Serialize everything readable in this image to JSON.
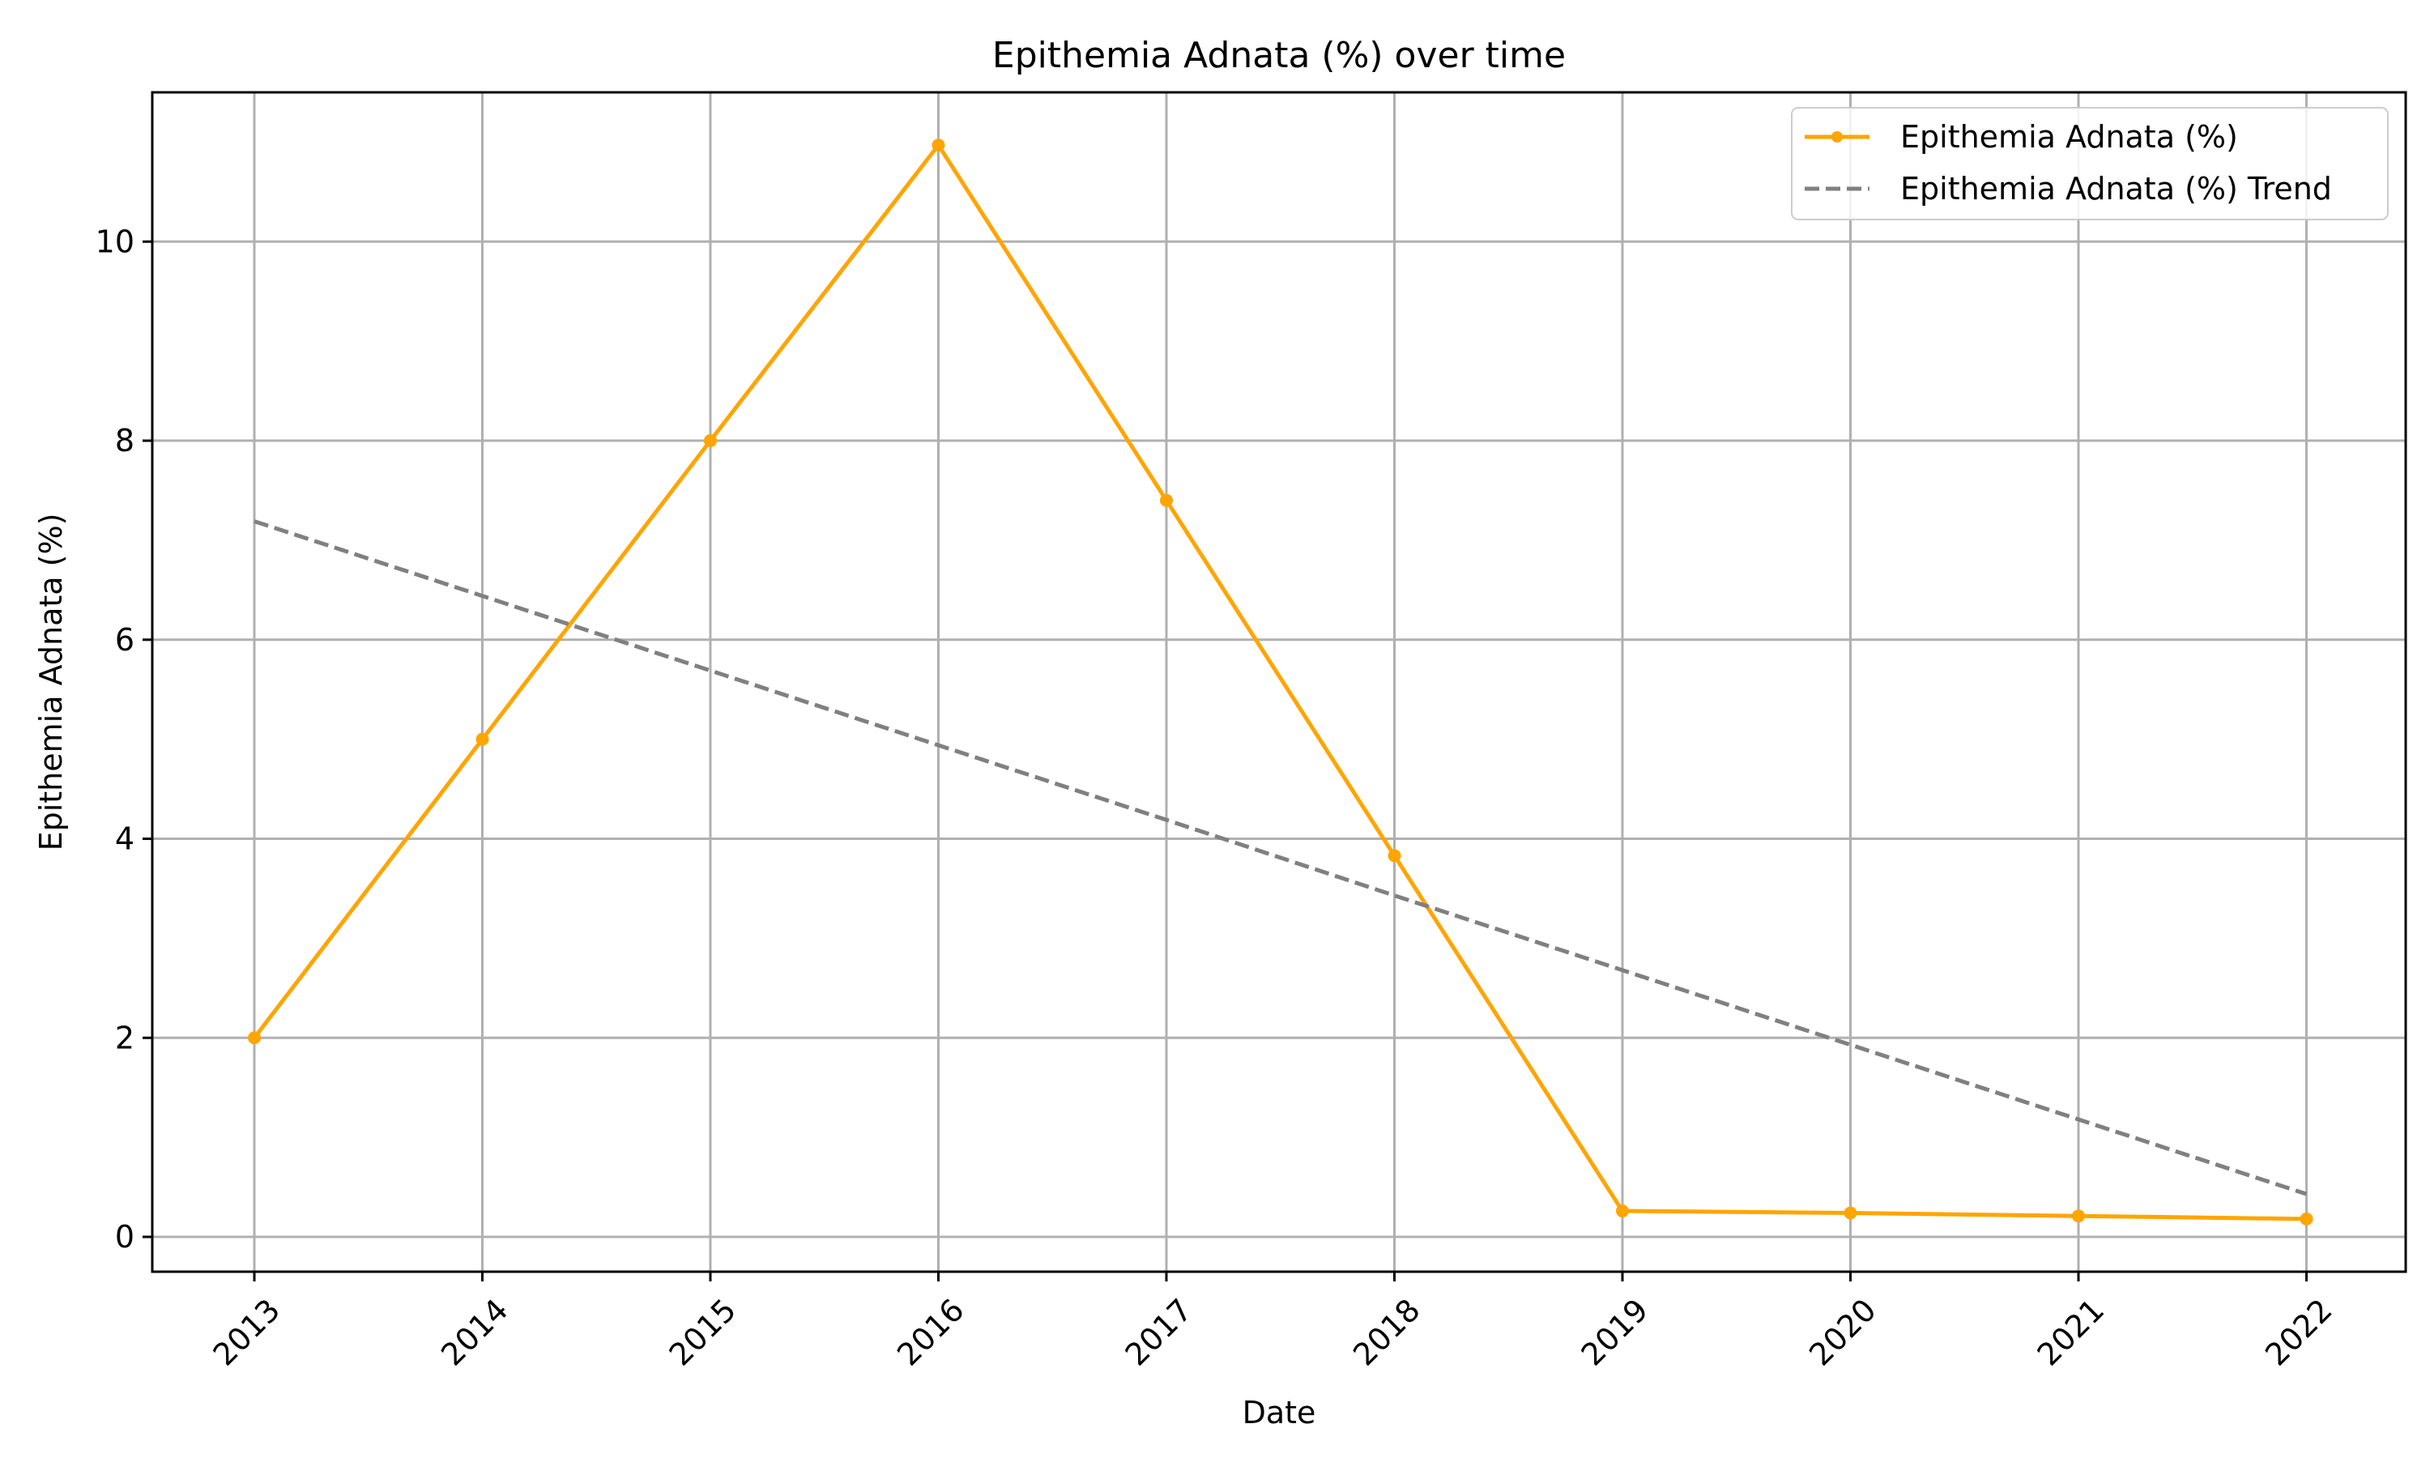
{
  "chart_data": {
    "type": "line",
    "title": "Epithemia Adnata (%) over time",
    "xlabel": "Date",
    "ylabel": "Epithemia Adnata (%)",
    "categories": [
      "2013",
      "2014",
      "2015",
      "2016",
      "2017",
      "2018",
      "2019",
      "2020",
      "2021",
      "2022"
    ],
    "series": [
      {
        "name": "Epithemia Adnata (%)",
        "style": "solid-marker",
        "color": "#FFA500",
        "values": [
          2.0,
          5.0,
          8.0,
          10.97,
          7.4,
          3.83,
          0.26,
          0.24,
          0.21,
          0.18
        ]
      },
      {
        "name": "Epithemia Adnata (%) Trend",
        "style": "dashed",
        "color": "#808080",
        "values": [
          7.19,
          6.44,
          5.69,
          4.94,
          4.19,
          3.43,
          2.68,
          1.93,
          1.18,
          0.43
        ]
      }
    ],
    "yticks": [
      0,
      2,
      4,
      6,
      8,
      10
    ],
    "ylim": [
      -0.35,
      11.5
    ],
    "grid": true,
    "legend_position": "upper right"
  }
}
